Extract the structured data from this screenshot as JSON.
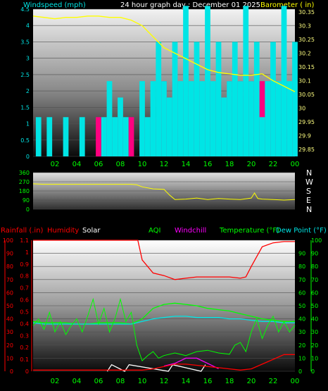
{
  "header": {
    "windspeed_label": "Windspeed (mph)",
    "title": "24 hour graph day : December 01 2025",
    "barometer_label": "Barometer ( in)"
  },
  "legend": {
    "rainfall": "Rainfall (.in)",
    "humidity": "Humidity",
    "solar": "Solar",
    "aqi": "AQI",
    "windchill": "Windchill",
    "temperature": "Temperature (°F)",
    "dewpoint": "Dew Point (°F)"
  },
  "directions": [
    "N",
    "W",
    "S",
    "E",
    "N"
  ],
  "colors": {
    "windspeed": "#00e5e5",
    "gust": "#ff0080",
    "barometer": "#ffff00",
    "wind_direction": "#ffff00",
    "rainfall": "#ff0000",
    "humidity": "#ff0000",
    "solar": "#ffffff",
    "aqi": "#00ff00",
    "windchill": "#ff00ff",
    "temperature": "#00ff00",
    "dewpoint": "#00e5e5",
    "grid": "#505050",
    "axis_tick": "#00ff00"
  },
  "chart_data": [
    {
      "type": "line",
      "name": "wind-barometer",
      "x_ticks": [
        "02",
        "04",
        "06",
        "08",
        "10",
        "12",
        "14",
        "16",
        "18",
        "20",
        "22",
        "00"
      ],
      "xlim": [
        0,
        24
      ],
      "left_axis": {
        "label": "Windspeed (mph)",
        "ylim": [
          0,
          4.5
        ],
        "ticks": [
          "0",
          "0.5",
          "1",
          "1.5",
          "2",
          "2.5",
          "3",
          "3.5",
          "4",
          "4.5"
        ]
      },
      "right_axis": {
        "label": "Barometer ( in)",
        "ylim": [
          29.825,
          30.36
        ],
        "ticks": [
          "29.85",
          "29.9",
          "29.95",
          "30",
          "30.05",
          "30.1",
          "30.15",
          "30.2",
          "30.25",
          "30.3",
          "30.35"
        ]
      },
      "series": [
        {
          "name": "Barometer",
          "axis": "right",
          "x": [
            0,
            1,
            2,
            3,
            4,
            5,
            6,
            7,
            8,
            9,
            10,
            11,
            12,
            13,
            14,
            15,
            16,
            17,
            18,
            19,
            20,
            21,
            22,
            23,
            24
          ],
          "y": [
            30.335,
            30.33,
            30.325,
            30.33,
            30.33,
            30.335,
            30.335,
            30.33,
            30.33,
            30.32,
            30.3,
            30.26,
            30.22,
            30.2,
            30.18,
            30.16,
            30.14,
            30.13,
            30.125,
            30.12,
            30.12,
            30.125,
            30.1,
            30.08,
            30.06
          ]
        },
        {
          "name": "Windspeed",
          "axis": "left",
          "x": [
            0,
            0.5,
            1,
            1.5,
            2,
            2.5,
            3,
            3.5,
            4,
            4.5,
            5,
            5.5,
            6,
            6.5,
            7,
            7.5,
            8,
            8.5,
            9,
            9.5,
            10,
            10.5,
            11,
            11.5,
            12,
            12.5,
            13,
            13.5,
            14,
            14.5,
            15,
            15.5,
            16,
            16.5,
            17,
            17.5,
            18,
            18.5,
            19,
            19.5,
            20,
            20.5,
            21,
            21.5,
            22,
            22.5,
            23,
            23.5,
            24
          ],
          "y": [
            0,
            1.2,
            0,
            1.2,
            0,
            0,
            1.2,
            0,
            0,
            1.2,
            0,
            0,
            0,
            1.2,
            2.3,
            1.2,
            1.8,
            1.2,
            0,
            0,
            2.3,
            1.2,
            2.3,
            3.5,
            2.3,
            1.8,
            3.5,
            2.3,
            4.6,
            2.3,
            3.5,
            2.3,
            4.6,
            2.3,
            3.5,
            1.8,
            2.3,
            3.5,
            2.3,
            4.6,
            2.3,
            3.5,
            1.2,
            2.3,
            3.5,
            2.3,
            4.6,
            2.3,
            3.5
          ]
        },
        {
          "name": "Gust",
          "axis": "left",
          "x": [
            6,
            7,
            8,
            9,
            10,
            11,
            12,
            13,
            14,
            15,
            16,
            17,
            18,
            19,
            20,
            21,
            22,
            23,
            24
          ],
          "y": [
            1.2,
            1.2,
            1.2,
            1.2,
            1.2,
            1.2,
            2.3,
            2.3,
            2.3,
            2.3,
            2.3,
            2.3,
            2.3,
            2.3,
            2.3,
            2.3,
            2.3,
            2.3,
            2.3
          ]
        }
      ]
    },
    {
      "type": "line",
      "name": "wind-direction",
      "xlim": [
        0,
        24
      ],
      "ylim": [
        0,
        360
      ],
      "y_ticks": [
        "0",
        "90",
        "180",
        "270",
        "360"
      ],
      "series": [
        {
          "name": "Wind Direction",
          "x": [
            0,
            1,
            2,
            3,
            4,
            5,
            6,
            7,
            8,
            9,
            9.5,
            10,
            11,
            12,
            12.5,
            13,
            14,
            15,
            16,
            17,
            18,
            19,
            20,
            20.3,
            20.6,
            21,
            22,
            23,
            24
          ],
          "y": [
            250,
            245,
            245,
            245,
            245,
            245,
            245,
            245,
            245,
            245,
            240,
            220,
            200,
            195,
            140,
            95,
            100,
            110,
            95,
            105,
            100,
            95,
            110,
            160,
            105,
            100,
            95,
            90,
            95
          ]
        }
      ]
    },
    {
      "type": "line",
      "name": "temperature-humidity",
      "x_ticks": [
        "02",
        "04",
        "06",
        "08",
        "10",
        "12",
        "14",
        "16",
        "18",
        "20",
        "22",
        "00"
      ],
      "xlim": [
        0,
        24
      ],
      "left_axis": {
        "label": "Rainfall (.in)",
        "ylim": [
          0,
          1.1
        ],
        "ticks": [
          "0",
          "0.1",
          "0.2",
          "0.3",
          "0.4",
          "0.5",
          "0.6",
          "0.7",
          "0.8",
          "0.9",
          "1",
          "1.1"
        ]
      },
      "left_axis_2": {
        "label": "Humidity",
        "ylim": [
          0,
          100
        ],
        "ticks": [
          "0",
          "10",
          "20",
          "30",
          "40",
          "50",
          "60",
          "70",
          "80",
          "90",
          "100"
        ]
      },
      "right_axis": {
        "label": "Temperature (°F)",
        "ylim": [
          0,
          100
        ],
        "ticks": [
          "0",
          "10",
          "20",
          "30",
          "40",
          "50",
          "60",
          "70",
          "80",
          "90"
        ]
      },
      "series": [
        {
          "name": "Humidity",
          "axis": "left_2",
          "x": [
            0,
            1,
            2,
            3,
            4,
            5,
            6,
            7,
            8,
            9,
            9.6,
            10,
            11,
            12,
            13,
            14,
            15,
            16,
            17,
            18,
            19,
            19.5,
            20,
            21,
            22,
            23,
            24
          ],
          "y": [
            100,
            100,
            100,
            100,
            100,
            100,
            100,
            100,
            100,
            100,
            100,
            85,
            75,
            73,
            70,
            71,
            72,
            72,
            72,
            72,
            71,
            72,
            80,
            95,
            98,
            99,
            99
          ]
        },
        {
          "name": "Temperature",
          "axis": "right",
          "x": [
            0,
            1,
            2,
            3,
            4,
            5,
            6,
            7,
            8,
            9,
            10,
            11,
            12,
            13,
            14,
            15,
            16,
            17,
            18,
            19,
            20,
            21,
            22,
            23,
            24
          ],
          "y": [
            38,
            37,
            37,
            37,
            36,
            36,
            37,
            37,
            37,
            36,
            40,
            48,
            51,
            52,
            51,
            50,
            48,
            47,
            46,
            44,
            42,
            40,
            39,
            38,
            38
          ]
        },
        {
          "name": "Dew Point",
          "axis": "right",
          "x": [
            0,
            1,
            2,
            3,
            4,
            5,
            6,
            7,
            8,
            9,
            10,
            11,
            12,
            13,
            14,
            15,
            16,
            17,
            18,
            19,
            20,
            21,
            22,
            23,
            24
          ],
          "y": [
            37,
            36,
            36,
            36,
            36,
            36,
            36,
            36,
            36,
            36,
            38,
            40,
            41,
            42,
            42,
            41,
            41,
            41,
            40,
            40,
            39,
            38,
            38,
            37,
            37
          ]
        },
        {
          "name": "AQI",
          "axis": "right",
          "x": [
            0,
            0.5,
            1,
            1.5,
            2,
            2.5,
            3,
            3.5,
            4,
            4.5,
            5,
            5.5,
            6,
            6.5,
            7,
            7.5,
            8,
            8.5,
            9,
            9.5,
            10,
            10.5,
            11,
            11.5,
            12,
            13,
            14,
            15,
            16,
            17,
            18,
            18.5,
            19,
            19.5,
            20,
            20.5,
            21,
            21.5,
            22,
            22.5,
            23,
            23.5,
            24
          ],
          "y": [
            35,
            40,
            32,
            45,
            30,
            38,
            28,
            35,
            40,
            30,
            42,
            55,
            36,
            48,
            30,
            40,
            55,
            38,
            45,
            20,
            8,
            12,
            15,
            10,
            12,
            14,
            12,
            15,
            16,
            14,
            13,
            20,
            22,
            15,
            30,
            40,
            25,
            35,
            42,
            30,
            38,
            30,
            35
          ]
        },
        {
          "name": "Windchill",
          "axis": "right",
          "x": [
            12,
            13,
            14,
            15,
            16,
            17
          ],
          "y": [
            4,
            6,
            10,
            10,
            6,
            2
          ]
        },
        {
          "name": "Solar",
          "axis": "right",
          "x": [
            6.8,
            7.2,
            8.4,
            8.8,
            12.4,
            12.8,
            15.4,
            15.8
          ],
          "y": [
            0,
            5,
            0,
            5,
            0,
            5,
            0,
            5
          ]
        },
        {
          "name": "Rainfall",
          "axis": "left",
          "x": [
            0,
            8,
            9,
            10,
            11,
            12,
            13,
            14,
            15,
            16,
            17,
            18,
            19,
            20,
            21,
            22,
            23,
            24
          ],
          "y": [
            0.01,
            0.01,
            0.01,
            0.01,
            0.02,
            0.04,
            0.06,
            0.06,
            0.05,
            0.04,
            0.03,
            0.02,
            0.01,
            0.02,
            0.06,
            0.1,
            0.14,
            0.14
          ]
        }
      ]
    }
  ]
}
